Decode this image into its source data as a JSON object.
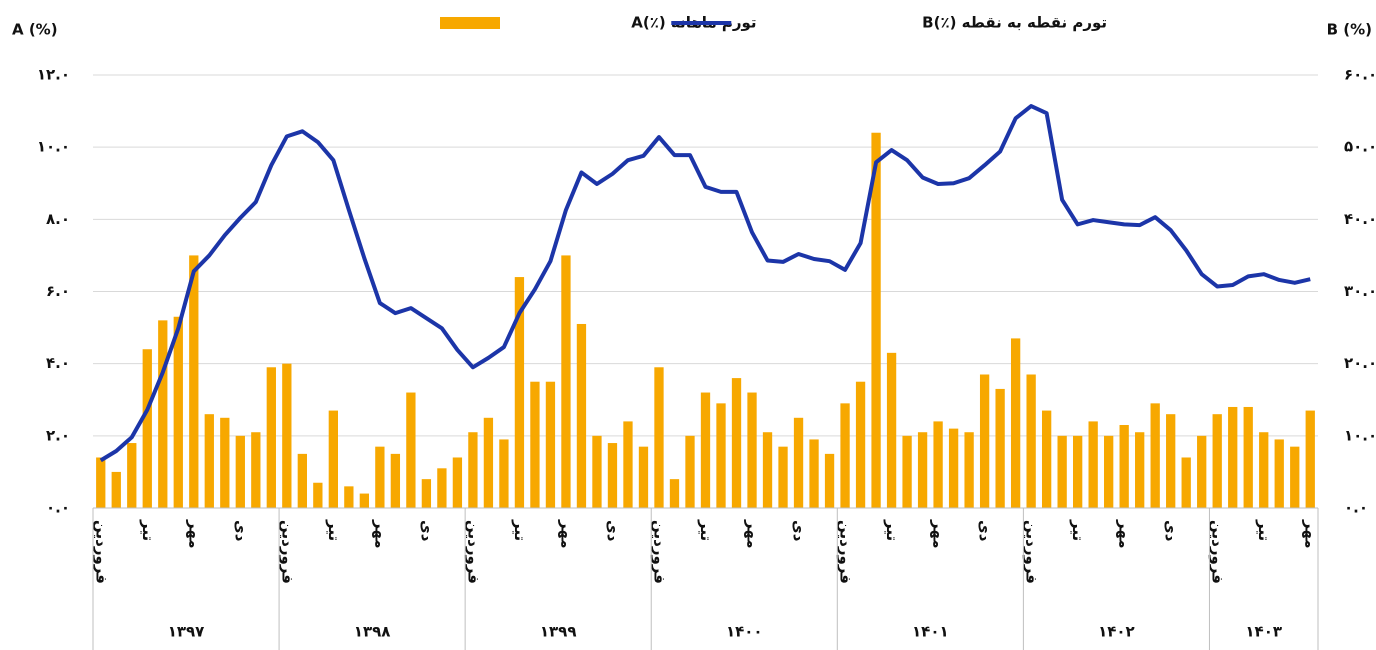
{
  "chart_data": {
    "type": "bar-line",
    "y_label": "A (%)",
    "y2_label": "B (%)",
    "categories": [
      "فروردین",
      null,
      null,
      "تیر",
      null,
      null,
      "مهر",
      null,
      null,
      "دی",
      null,
      null,
      "فروردین",
      null,
      null,
      "تیر",
      null,
      null,
      "مهر",
      null,
      null,
      "دی",
      null,
      null,
      "فروردین",
      null,
      null,
      "تیر",
      null,
      null,
      "مهر",
      null,
      null,
      "دی",
      null,
      null,
      "فروردین",
      null,
      null,
      "تیر",
      null,
      null,
      "مهر",
      null,
      null,
      "دی",
      null,
      null,
      "فروردین",
      null,
      null,
      "تیر",
      null,
      null,
      "مهر",
      null,
      null,
      "دی",
      null,
      null,
      "فروردین",
      null,
      null,
      "تیر",
      null,
      null,
      "مهر",
      null,
      null,
      "دی",
      null,
      null,
      "فروردین",
      null,
      null,
      "تیر",
      null,
      null,
      "مهر"
    ],
    "years": [
      "۱۳۹۷",
      "۱۳۹۸",
      "۱۳۹۹",
      "۱۴۰۰",
      "۱۴۰۱",
      "۱۴۰۲",
      "۱۴۰۳"
    ],
    "series": [
      {
        "name": "تورم ماهانه (٪)A",
        "type": "bar",
        "color": "#F7A800",
        "values": [
          1.4,
          1.0,
          1.8,
          4.4,
          5.2,
          5.3,
          7.0,
          2.6,
          2.5,
          2.0,
          2.1,
          3.9,
          4.0,
          1.5,
          0.7,
          2.7,
          0.6,
          0.4,
          1.7,
          1.5,
          3.2,
          0.8,
          1.1,
          1.4,
          2.1,
          2.5,
          1.9,
          6.4,
          3.5,
          3.5,
          7.0,
          5.1,
          2.0,
          1.8,
          2.4,
          1.7,
          3.9,
          0.8,
          2.0,
          3.2,
          2.9,
          3.6,
          3.2,
          2.1,
          1.7,
          2.5,
          1.9,
          1.5,
          2.9,
          3.5,
          10.4,
          4.3,
          2.0,
          2.1,
          2.4,
          2.2,
          2.1,
          3.7,
          3.3,
          4.7,
          3.7,
          2.7,
          2.0,
          2.0,
          2.4,
          2.0,
          2.3,
          2.1,
          2.9,
          2.6,
          1.4,
          2.0,
          2.6,
          2.8,
          2.8,
          2.1,
          1.9,
          1.7,
          2.7
        ]
      },
      {
        "name": "تورم نقطه به نقطه (٪)B",
        "type": "line",
        "axis": "y2",
        "color": "#1C35A8",
        "values": [
          6.6,
          7.9,
          9.8,
          13.6,
          18.8,
          24.9,
          32.8,
          35.0,
          37.8,
          40.2,
          42.4,
          47.5,
          51.5,
          52.2,
          50.7,
          48.2,
          41.3,
          34.6,
          28.4,
          27.0,
          27.7,
          26.3,
          24.9,
          21.9,
          19.5,
          20.8,
          22.3,
          27.0,
          30.3,
          34.2,
          41.3,
          46.5,
          44.9,
          46.3,
          48.2,
          48.8,
          51.4,
          48.9,
          48.9,
          44.5,
          43.8,
          43.8,
          38.2,
          34.3,
          34.1,
          35.2,
          34.5,
          34.2,
          33.0,
          36.7,
          47.9,
          49.6,
          48.2,
          45.8,
          44.9,
          45.0,
          45.7,
          47.5,
          49.4,
          54.0,
          55.7,
          54.7,
          42.7,
          39.3,
          39.9,
          39.6,
          39.3,
          39.2,
          40.3,
          38.5,
          35.7,
          32.4,
          30.7,
          30.9,
          32.1,
          32.4,
          31.6,
          31.2,
          31.7
        ]
      }
    ],
    "ylim": [
      0,
      12
    ],
    "yticks": [
      {
        "value": 0,
        "label": "۰.۰"
      },
      {
        "value": 2,
        "label": "۲.۰"
      },
      {
        "value": 4,
        "label": "۴.۰"
      },
      {
        "value": 6,
        "label": "۶.۰"
      },
      {
        "value": 8,
        "label": "۸.۰"
      },
      {
        "value": 10,
        "label": "۱۰.۰"
      },
      {
        "value": 12,
        "label": "۱۲.۰"
      }
    ],
    "y2lim": [
      0,
      60
    ],
    "y2ticks": [
      {
        "value": 0,
        "label": "۰.۰"
      },
      {
        "value": 10,
        "label": "۱۰.۰"
      },
      {
        "value": 20,
        "label": "۲۰.۰"
      },
      {
        "value": 30,
        "label": "۳۰.۰"
      },
      {
        "value": 40,
        "label": "۴۰.۰"
      },
      {
        "value": 50,
        "label": "۵۰.۰"
      },
      {
        "value": 60,
        "label": "۶۰.۰"
      }
    ],
    "grid": true
  }
}
